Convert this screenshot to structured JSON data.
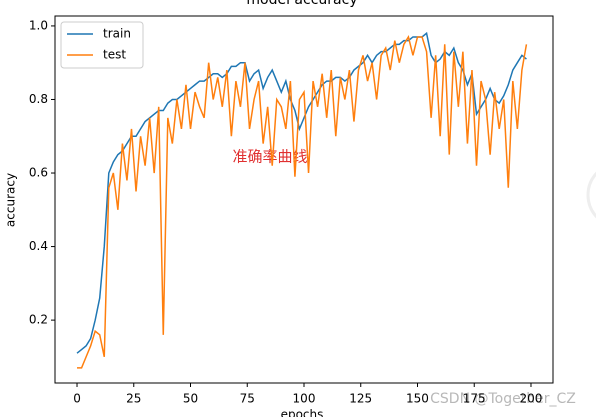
{
  "chart_data": {
    "type": "line",
    "title": "model accuracy",
    "xlabel": "epochs",
    "ylabel": "accuracy",
    "annotation": "准确率曲线",
    "watermark": "CSDN @Together_CZ",
    "x": [
      0,
      2,
      4,
      6,
      8,
      10,
      12,
      14,
      16,
      18,
      20,
      22,
      24,
      26,
      28,
      30,
      32,
      34,
      36,
      38,
      40,
      42,
      44,
      46,
      48,
      50,
      52,
      54,
      56,
      58,
      60,
      62,
      64,
      66,
      68,
      70,
      72,
      74,
      76,
      78,
      80,
      82,
      84,
      86,
      88,
      90,
      92,
      94,
      96,
      98,
      100,
      102,
      104,
      106,
      108,
      110,
      112,
      114,
      116,
      118,
      120,
      122,
      124,
      126,
      128,
      130,
      132,
      134,
      136,
      138,
      140,
      142,
      144,
      146,
      148,
      150,
      152,
      154,
      156,
      158,
      160,
      162,
      164,
      166,
      168,
      170,
      172,
      174,
      176,
      178,
      180,
      182,
      184,
      186,
      188,
      190,
      192,
      194,
      196,
      198
    ],
    "series": [
      {
        "name": "train",
        "color": "#1f77b4",
        "values": [
          0.11,
          0.12,
          0.13,
          0.15,
          0.2,
          0.26,
          0.4,
          0.6,
          0.63,
          0.65,
          0.66,
          0.68,
          0.7,
          0.7,
          0.72,
          0.74,
          0.75,
          0.76,
          0.77,
          0.77,
          0.79,
          0.8,
          0.8,
          0.81,
          0.82,
          0.83,
          0.84,
          0.85,
          0.85,
          0.86,
          0.87,
          0.87,
          0.86,
          0.87,
          0.89,
          0.89,
          0.9,
          0.9,
          0.85,
          0.87,
          0.88,
          0.83,
          0.86,
          0.88,
          0.85,
          0.82,
          0.85,
          0.8,
          0.77,
          0.72,
          0.75,
          0.78,
          0.8,
          0.82,
          0.84,
          0.85,
          0.85,
          0.86,
          0.86,
          0.85,
          0.86,
          0.88,
          0.89,
          0.9,
          0.92,
          0.9,
          0.92,
          0.93,
          0.93,
          0.94,
          0.95,
          0.95,
          0.96,
          0.96,
          0.97,
          0.97,
          0.97,
          0.98,
          0.92,
          0.9,
          0.91,
          0.93,
          0.92,
          0.94,
          0.9,
          0.88,
          0.84,
          0.87,
          0.76,
          0.78,
          0.8,
          0.83,
          0.8,
          0.79,
          0.81,
          0.84,
          0.88,
          0.9,
          0.92,
          0.91
        ]
      },
      {
        "name": "test",
        "color": "#ff7f0e",
        "values": [
          0.07,
          0.07,
          0.1,
          0.13,
          0.17,
          0.16,
          0.1,
          0.56,
          0.6,
          0.5,
          0.68,
          0.58,
          0.72,
          0.55,
          0.7,
          0.62,
          0.75,
          0.6,
          0.78,
          0.16,
          0.75,
          0.68,
          0.8,
          0.72,
          0.84,
          0.72,
          0.82,
          0.78,
          0.75,
          0.9,
          0.8,
          0.86,
          0.78,
          0.88,
          0.7,
          0.85,
          0.78,
          0.9,
          0.72,
          0.8,
          0.85,
          0.68,
          0.78,
          0.62,
          0.8,
          0.78,
          0.72,
          0.85,
          0.59,
          0.8,
          0.82,
          0.6,
          0.85,
          0.78,
          0.87,
          0.75,
          0.88,
          0.7,
          0.86,
          0.8,
          0.88,
          0.74,
          0.88,
          0.92,
          0.85,
          0.9,
          0.8,
          0.92,
          0.94,
          0.88,
          0.96,
          0.9,
          0.95,
          0.97,
          0.92,
          0.97,
          0.97,
          0.93,
          0.75,
          0.92,
          0.7,
          0.95,
          0.65,
          0.93,
          0.78,
          0.93,
          0.68,
          0.88,
          0.62,
          0.85,
          0.8,
          0.65,
          0.82,
          0.72,
          0.8,
          0.56,
          0.85,
          0.72,
          0.88,
          0.95
        ]
      }
    ],
    "xlim": [
      -9.7,
      209.7
    ],
    "ylim": [
      0.029,
      1.027
    ],
    "xticks": [
      0,
      25,
      50,
      75,
      100,
      125,
      150,
      175,
      200
    ],
    "yticks": [
      0.2,
      0.4,
      0.6,
      0.8,
      {
        "value": 1,
        "label": "1.0"
      }
    ],
    "legend": "upper left"
  }
}
